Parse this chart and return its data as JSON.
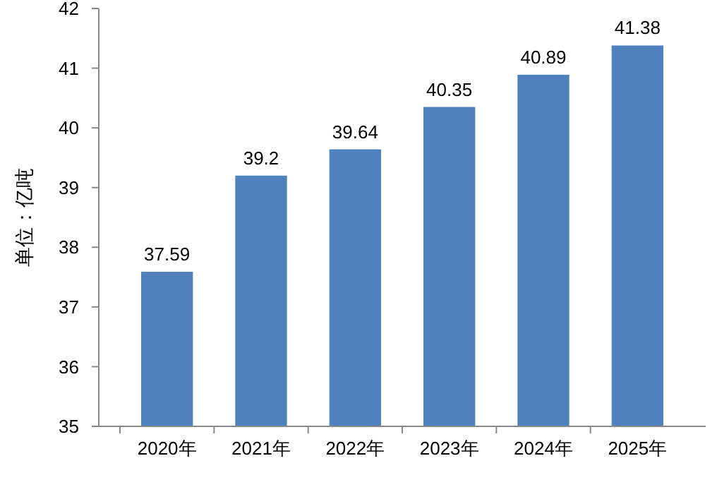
{
  "chart_data": {
    "type": "bar",
    "ylabel": "单位：亿吨",
    "categories": [
      "2020年",
      "2021年",
      "2022年",
      "2023年",
      "2024年",
      "2025年"
    ],
    "values": [
      37.59,
      39.2,
      39.64,
      40.35,
      40.89,
      41.38
    ],
    "color": "#4f81bd",
    "ylim": [
      35,
      42
    ],
    "yticks": [
      35,
      36,
      37,
      38,
      39,
      40,
      41,
      42
    ],
    "grid": false,
    "data_labels": true
  }
}
